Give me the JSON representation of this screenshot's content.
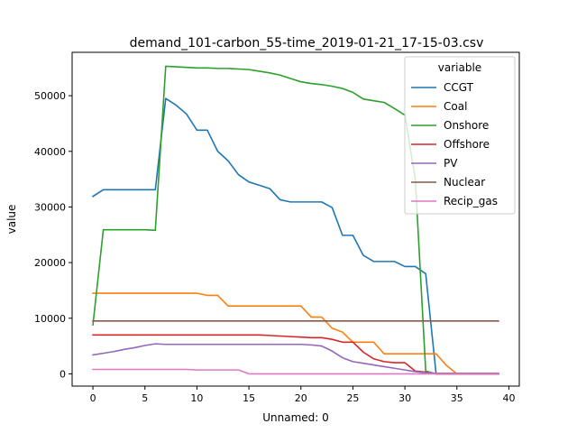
{
  "chart_data": {
    "type": "line",
    "title": "demand_101-carbon_55-time_2019-01-21_17-15-03.csv",
    "xlabel": "Unnamed: 0",
    "ylabel": "value",
    "xlim": [
      -2,
      41
    ],
    "ylim": [
      -2200,
      57800
    ],
    "xticks": [
      0,
      5,
      10,
      15,
      20,
      25,
      30,
      35,
      40
    ],
    "yticks": [
      0,
      10000,
      20000,
      30000,
      40000,
      50000
    ],
    "grid": false,
    "legend": {
      "title": "variable",
      "position": "top-right"
    },
    "x": [
      0,
      1,
      2,
      3,
      4,
      5,
      6,
      7,
      8,
      9,
      10,
      11,
      12,
      13,
      14,
      15,
      16,
      17,
      18,
      19,
      20,
      21,
      22,
      23,
      24,
      25,
      26,
      27,
      28,
      29,
      30,
      31,
      32,
      33,
      34,
      35,
      36,
      37,
      38,
      39
    ],
    "series": [
      {
        "name": "CCGT",
        "color": "#1f77b4",
        "values": [
          31900,
          33100,
          33100,
          33100,
          33100,
          33100,
          33100,
          49500,
          48300,
          46700,
          43800,
          43800,
          40000,
          38300,
          35800,
          34500,
          33900,
          33300,
          31300,
          30900,
          30900,
          30900,
          30900,
          29900,
          24900,
          24900,
          21300,
          20200,
          20200,
          20200,
          19300,
          19300,
          18000,
          0,
          0,
          0,
          0,
          0,
          0,
          0
        ]
      },
      {
        "name": "Coal",
        "color": "#ff7f0e",
        "values": [
          14500,
          14500,
          14500,
          14500,
          14500,
          14500,
          14500,
          14500,
          14500,
          14500,
          14500,
          14100,
          14100,
          12200,
          12200,
          12200,
          12200,
          12200,
          12200,
          12200,
          12200,
          10200,
          10200,
          8200,
          7500,
          5700,
          5700,
          5700,
          3600,
          3600,
          3600,
          3600,
          3600,
          3600,
          1500,
          0,
          0,
          0,
          0,
          0
        ]
      },
      {
        "name": "Onshore",
        "color": "#2ca02c",
        "values": [
          8800,
          25900,
          25900,
          25900,
          25900,
          25900,
          25800,
          55300,
          55200,
          55100,
          55000,
          55000,
          54900,
          54900,
          54800,
          54700,
          54400,
          54100,
          53700,
          53100,
          52500,
          52200,
          52000,
          51700,
          51300,
          50600,
          49400,
          49100,
          48800,
          47700,
          46500,
          35000,
          500,
          0,
          0,
          0,
          0,
          0,
          0,
          0
        ]
      },
      {
        "name": "Offshore",
        "color": "#d62728",
        "values": [
          7000,
          7000,
          7000,
          7000,
          7000,
          7000,
          7000,
          7000,
          7000,
          7000,
          7000,
          7000,
          7000,
          7000,
          7000,
          7000,
          7000,
          6900,
          6800,
          6700,
          6600,
          6500,
          6500,
          6200,
          5700,
          5700,
          3900,
          2700,
          2200,
          2000,
          2000,
          500,
          300,
          0,
          0,
          0,
          0,
          0,
          0,
          0
        ]
      },
      {
        "name": "PV",
        "color": "#9467bd",
        "values": [
          3400,
          3700,
          4000,
          4400,
          4700,
          5100,
          5400,
          5300,
          5300,
          5300,
          5300,
          5300,
          5300,
          5300,
          5300,
          5300,
          5300,
          5300,
          5300,
          5300,
          5300,
          5200,
          5000,
          4100,
          2900,
          2200,
          1900,
          1600,
          1300,
          1000,
          700,
          400,
          200,
          100,
          100,
          100,
          100,
          100,
          100,
          100
        ]
      },
      {
        "name": "Nuclear",
        "color": "#8c564b",
        "values": [
          9500,
          9500,
          9500,
          9500,
          9500,
          9500,
          9500,
          9500,
          9500,
          9500,
          9500,
          9500,
          9500,
          9500,
          9500,
          9500,
          9500,
          9500,
          9500,
          9500,
          9500,
          9500,
          9500,
          9500,
          9500,
          9500,
          9500,
          9500,
          9500,
          9500,
          9500,
          9500,
          9500,
          9500,
          9500,
          9500,
          9500,
          9500,
          9500,
          9500
        ]
      },
      {
        "name": "Recip_gas",
        "color": "#e377c2",
        "values": [
          800,
          800,
          800,
          800,
          800,
          800,
          800,
          800,
          800,
          800,
          700,
          700,
          700,
          700,
          700,
          0,
          0,
          0,
          0,
          0,
          0,
          0,
          0,
          0,
          0,
          0,
          0,
          0,
          0,
          0,
          0,
          0,
          0,
          0,
          0,
          0,
          0,
          0,
          0,
          0
        ]
      }
    ]
  }
}
